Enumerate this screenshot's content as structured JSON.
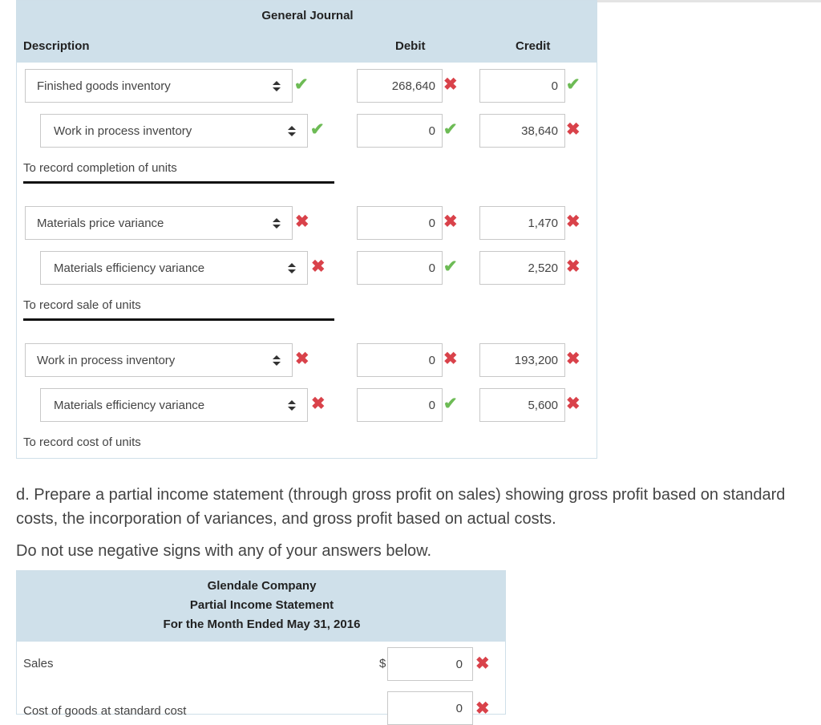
{
  "journal": {
    "title": "General Journal",
    "headers": {
      "description": "Description",
      "debit": "Debit",
      "credit": "Credit"
    },
    "groups": [
      {
        "rows": [
          {
            "account": "Finished goods inventory",
            "account_mark": "check",
            "debit": "268,640",
            "debit_mark": "cross",
            "credit": "0",
            "credit_mark": "check"
          },
          {
            "account": "Work in process inventory",
            "account_mark": "check",
            "debit": "0",
            "debit_mark": "check",
            "credit": "38,640",
            "credit_mark": "cross"
          }
        ],
        "note": "To record completion of units"
      },
      {
        "rows": [
          {
            "account": "Materials price variance",
            "account_mark": "cross",
            "debit": "0",
            "debit_mark": "cross",
            "credit": "1,470",
            "credit_mark": "cross"
          },
          {
            "account": "Materials efficiency variance",
            "account_mark": "cross",
            "debit": "0",
            "debit_mark": "check",
            "credit": "2,520",
            "credit_mark": "cross"
          }
        ],
        "note": "To record sale of units"
      },
      {
        "rows": [
          {
            "account": "Work in process inventory",
            "account_mark": "cross",
            "debit": "0",
            "debit_mark": "cross",
            "credit": "193,200",
            "credit_mark": "cross"
          },
          {
            "account": "Materials efficiency variance",
            "account_mark": "cross",
            "debit": "0",
            "debit_mark": "check",
            "credit": "5,600",
            "credit_mark": "cross"
          }
        ],
        "note": "To record cost of units"
      }
    ]
  },
  "instructions": {
    "part_d": "d. Prepare a partial income statement (through gross profit on sales) showing gross profit based on standard costs, the incorporation of variances, and gross profit based on actual costs.",
    "note": "Do not use negative signs with any of your answers below."
  },
  "income_statement": {
    "company": "Glendale Company",
    "title": "Partial Income Statement",
    "period": "For the Month Ended May 31, 2016",
    "rows": [
      {
        "label": "Sales",
        "currency": "$",
        "value": "0",
        "mark": "cross"
      },
      {
        "label": "Cost of goods at standard cost",
        "currency": "",
        "value": "0",
        "mark": "cross"
      }
    ]
  },
  "icons": {
    "check": "✔",
    "cross": "✖",
    "updown": "updown-arrows-icon"
  },
  "colors": {
    "header_bg": "#cfe0ea",
    "check": "#6dbb55",
    "cross": "#d9424a"
  }
}
